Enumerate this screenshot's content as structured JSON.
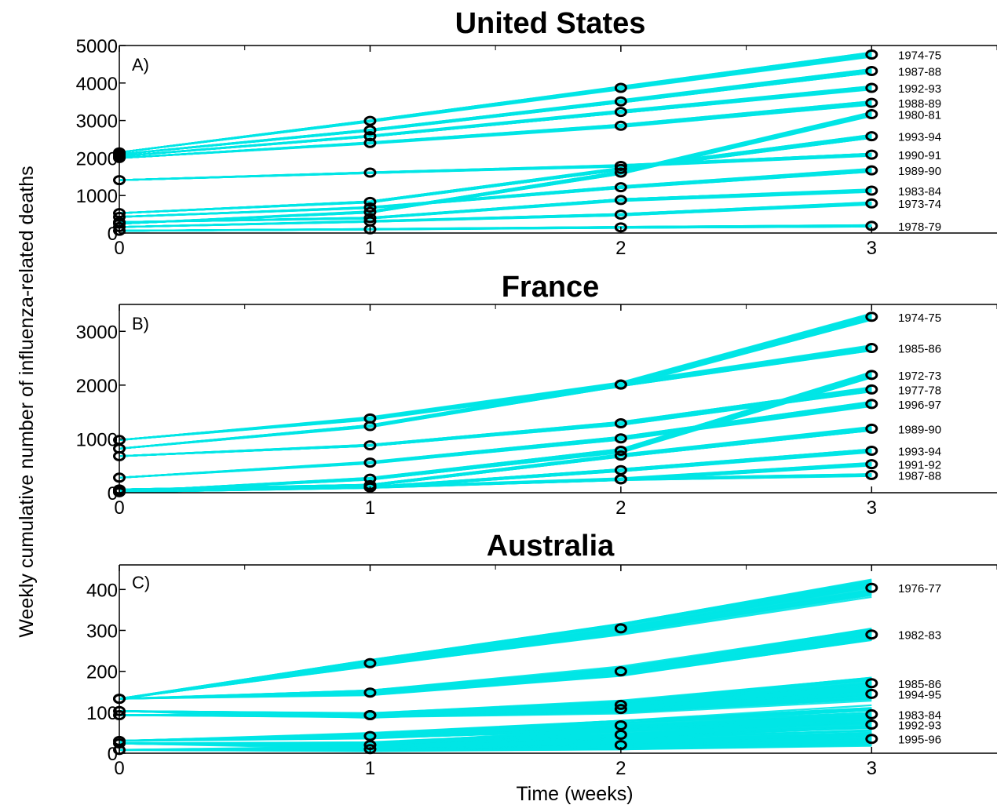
{
  "figure": {
    "ylabel": "Weekly cumulative number of influenza-related deaths",
    "xlabel": "Time (weeks)"
  },
  "chart_data": [
    {
      "type": "line",
      "title": "United States",
      "panel_label": "A)",
      "x": [
        0,
        1,
        2,
        3
      ],
      "xlim": [
        0,
        3.5
      ],
      "ylim": [
        0,
        5000
      ],
      "yticks": [
        0,
        1000,
        2000,
        3000,
        4000,
        5000
      ],
      "xticks": [
        0,
        1,
        2,
        3
      ],
      "band_color": "#00e5e5",
      "marker": "open-circle",
      "series": [
        {
          "name": "1974-75",
          "values": [
            2150,
            2990,
            3870,
            4760
          ],
          "spread": 110
        },
        {
          "name": "1987-88",
          "values": [
            2100,
            2740,
            3510,
            4320
          ],
          "spread": 100
        },
        {
          "name": "1992-93",
          "values": [
            2050,
            2580,
            3230,
            3870
          ],
          "spread": 90
        },
        {
          "name": "1988-89",
          "values": [
            2000,
            2400,
            2860,
            3470
          ],
          "spread": 90
        },
        {
          "name": "1980-81",
          "values": [
            250,
            560,
            1610,
            3170
          ],
          "spread": 100
        },
        {
          "name": "1993-94",
          "values": [
            530,
            830,
            1710,
            2580
          ],
          "spread": 90
        },
        {
          "name": "1990-91",
          "values": [
            1410,
            1610,
            1790,
            2090
          ],
          "spread": 60
        },
        {
          "name": "1989-90",
          "values": [
            430,
            680,
            1220,
            1670
          ],
          "spread": 80
        },
        {
          "name": "1983-84",
          "values": [
            290,
            400,
            880,
            1130
          ],
          "spread": 70
        },
        {
          "name": "1973-74",
          "values": [
            160,
            310,
            490,
            790
          ],
          "spread": 60
        },
        {
          "name": "1978-79",
          "values": [
            60,
            100,
            150,
            190
          ],
          "spread": 40
        }
      ]
    },
    {
      "type": "line",
      "title": "France",
      "panel_label": "B)",
      "x": [
        0,
        1,
        2,
        3
      ],
      "xlim": [
        0,
        3.5
      ],
      "ylim": [
        0,
        3500
      ],
      "yticks": [
        0,
        1000,
        2000,
        3000
      ],
      "xticks": [
        0,
        1,
        2,
        3
      ],
      "band_color": "#00e5e5",
      "marker": "open-circle",
      "series": [
        {
          "name": "1974-75",
          "values": [
            980,
            1380,
            2010,
            3270
          ],
          "spread": 110
        },
        {
          "name": "1985-86",
          "values": [
            820,
            1240,
            2010,
            2690
          ],
          "spread": 90
        },
        {
          "name": "1972-73",
          "values": [
            20,
            260,
            780,
            2190
          ],
          "spread": 100
        },
        {
          "name": "1977-78",
          "values": [
            680,
            880,
            1290,
            1920
          ],
          "spread": 80
        },
        {
          "name": "1996-97",
          "values": [
            280,
            560,
            1010,
            1650
          ],
          "spread": 80
        },
        {
          "name": "1989-90",
          "values": [
            60,
            140,
            690,
            1190
          ],
          "spread": 70
        },
        {
          "name": "1993-94",
          "values": [
            40,
            100,
            420,
            780
          ],
          "spread": 60
        },
        {
          "name": "1991-92",
          "values": [
            10,
            100,
            250,
            530
          ],
          "spread": 50
        },
        {
          "name": "1987-88",
          "values": [
            30,
            100,
            250,
            330
          ],
          "spread": 40
        }
      ]
    },
    {
      "type": "line",
      "title": "Australia",
      "panel_label": "C)",
      "x": [
        0,
        1,
        2,
        3
      ],
      "xlim": [
        0,
        3.5
      ],
      "ylim": [
        0,
        460
      ],
      "yticks": [
        0,
        100,
        200,
        300,
        400
      ],
      "xticks": [
        0,
        1,
        2,
        3
      ],
      "band_color": "#00e5e5",
      "marker": "open-circle",
      "series": [
        {
          "name": "1976-77",
          "values": [
            133,
            220,
            305,
            404
          ],
          "spread": 40
        },
        {
          "name": "1982-83",
          "values": [
            133,
            148,
            200,
            290
          ],
          "spread": 30
        },
        {
          "name": "1985-86",
          "values": [
            103,
            93,
            118,
            171
          ],
          "spread": 30
        },
        {
          "name": "1994-95",
          "values": [
            93,
            93,
            108,
            145
          ],
          "spread": 30
        },
        {
          "name": "1983-84",
          "values": [
            30,
            42,
            68,
            95
          ],
          "spread": 40
        },
        {
          "name": "1992-93",
          "values": [
            24,
            20,
            45,
            70
          ],
          "spread": 40
        },
        {
          "name": "1995-96",
          "values": [
            8,
            10,
            20,
            35
          ],
          "spread": 30
        }
      ]
    }
  ]
}
